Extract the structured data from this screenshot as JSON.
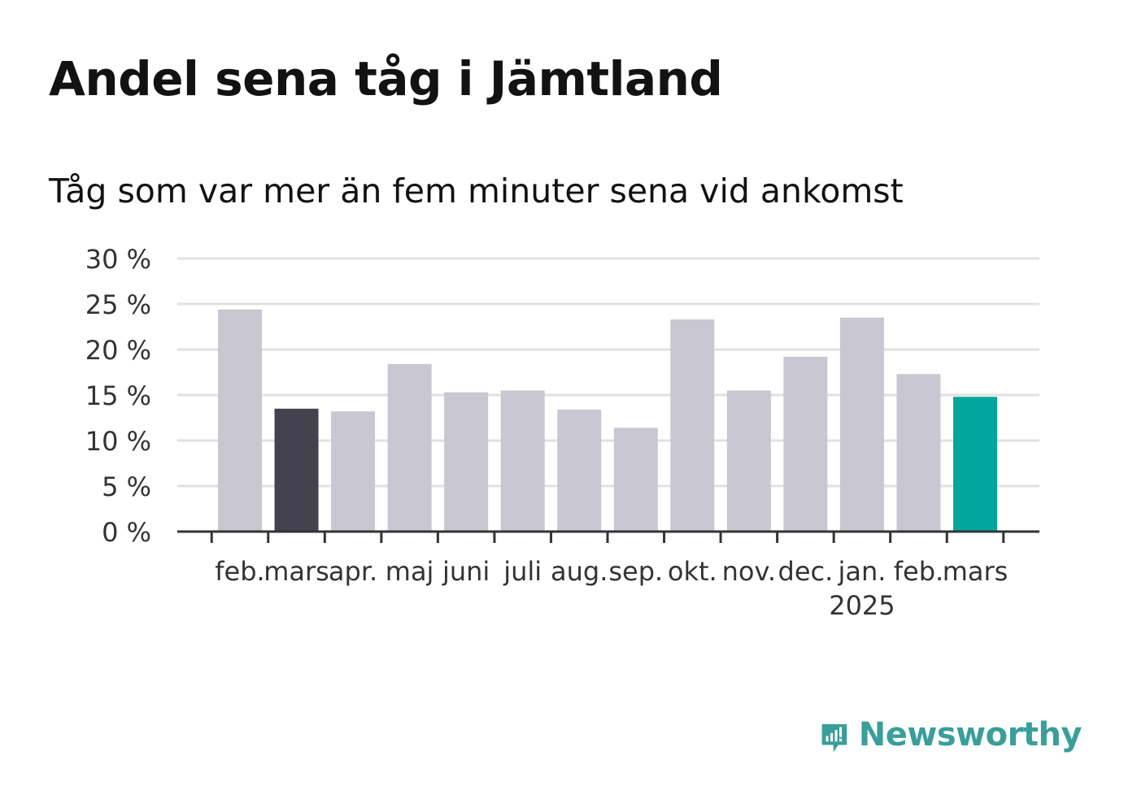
{
  "title": "Andel sena tåg i Jämtland",
  "subtitle": "Tåg som var mer än fem minuter sena vid ankomst",
  "logo_text": "Newsworthy",
  "colors": {
    "bar_default": "#c8c7d2",
    "bar_highlight_previous": "#44424e",
    "bar_highlight_current": "#00a79a",
    "grid": "#e1e1e1",
    "axis": "#333333",
    "brand": "#3a9e9a"
  },
  "chart_data": {
    "type": "bar",
    "categories": [
      "feb.",
      "mars",
      "apr.",
      "maj",
      "juni",
      "juli",
      "aug.",
      "sep.",
      "okt.",
      "nov.",
      "dec.",
      "jan.",
      "feb.",
      "mars"
    ],
    "year_labels": [
      "",
      "",
      "",
      "",
      "",
      "",
      "",
      "",
      "",
      "",
      "",
      "2025",
      "",
      ""
    ],
    "values": [
      24.4,
      13.5,
      13.2,
      18.4,
      15.3,
      15.5,
      13.4,
      11.4,
      23.3,
      15.5,
      19.2,
      23.5,
      17.3,
      14.8
    ],
    "highlight": [
      "default",
      "previous",
      "default",
      "default",
      "default",
      "default",
      "default",
      "default",
      "default",
      "default",
      "default",
      "default",
      "default",
      "current"
    ],
    "yticks": [
      0,
      5,
      10,
      15,
      20,
      25,
      30
    ],
    "ytick_labels": [
      "0 %",
      "5 %",
      "10 %",
      "15 %",
      "20 %",
      "25 %",
      "30 %"
    ],
    "ylim": [
      0,
      30
    ],
    "xlabel": "",
    "ylabel": "",
    "grid": true,
    "legend": "none"
  }
}
